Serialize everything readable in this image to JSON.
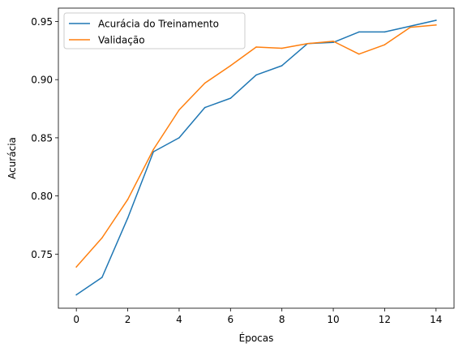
{
  "chart_data": {
    "type": "line",
    "xlabel": "Épocas",
    "ylabel": "Acurácia",
    "xlim": [
      -0.7,
      14.7
    ],
    "ylim": [
      0.7035,
      0.9615
    ],
    "xticks": [
      0,
      2,
      4,
      6,
      8,
      10,
      12,
      14
    ],
    "yticks": [
      0.75,
      0.8,
      0.85,
      0.9,
      0.95
    ],
    "ytick_labels": [
      "0.75",
      "0.80",
      "0.85",
      "0.90",
      "0.95"
    ],
    "grid": false,
    "legend_position": "upper-left",
    "x": [
      0,
      1,
      2,
      3,
      4,
      5,
      6,
      7,
      8,
      9,
      10,
      11,
      12,
      13,
      14
    ],
    "series": [
      {
        "name": "Acurácia do Treinamento",
        "color": "#1f77b4",
        "values": [
          0.715,
          0.73,
          0.781,
          0.838,
          0.85,
          0.876,
          0.884,
          0.904,
          0.912,
          0.931,
          0.932,
          0.941,
          0.941,
          0.946,
          0.951
        ]
      },
      {
        "name": "Validação",
        "color": "#ff7f0e",
        "values": [
          0.739,
          0.764,
          0.797,
          0.84,
          0.874,
          0.897,
          0.912,
          0.928,
          0.927,
          0.931,
          0.933,
          0.922,
          0.93,
          0.945,
          0.947
        ]
      }
    ]
  }
}
